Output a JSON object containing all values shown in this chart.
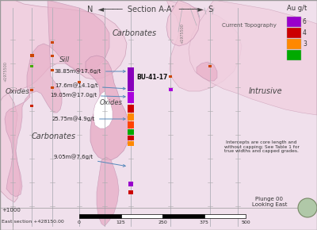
{
  "bg_color": "#f0e0ec",
  "main_bg": "#ffffff",
  "pink_light": "#f0d0e0",
  "pink_med": "#e8b0c8",
  "pink_pale": "#f8e8f0",
  "title_text": "N  ◄────  Section A-A’  ────►  S",
  "east_section": "East section +428150.00",
  "elevation_label": "+1000",
  "plunge_text": "Plunge 00\nLooking East",
  "intercept_note": "Intercepts are core length and\nwithout capping; See Table 1 for\ntrue widths and capped grades.",
  "scale_ticks": [
    0,
    125,
    250,
    375,
    500
  ],
  "legend_title": "Au g/t",
  "legend_colors": [
    "#9900cc",
    "#cc0000",
    "#ff8800",
    "#00aa00"
  ],
  "legend_labels": [
    "6",
    "4",
    "3",
    ""
  ],
  "vert_label": "+1975500"
}
